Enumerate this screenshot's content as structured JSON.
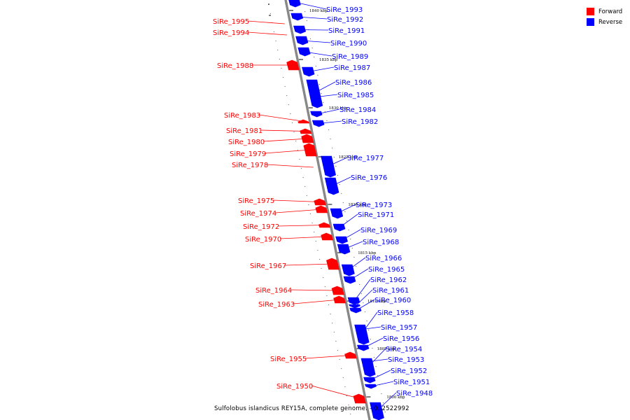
{
  "caption": "Sulfolobus islandicus REY15A, complete genome. - 0..2522992",
  "legend": {
    "forward": {
      "label": "Forward",
      "color": "#ff0000"
    },
    "reverse": {
      "label": "Reverse",
      "color": "#0000ff"
    }
  },
  "colors": {
    "forward": "#ff0000",
    "reverse": "#0000ff",
    "backbone": "#888888"
  },
  "scale_labels": [
    "1840 kbp",
    "1835 kbp",
    "1830 kbp",
    "1825 kbp",
    "1820 kbp",
    "1815 kbp",
    "1810 kbp",
    "1805 kbp",
    "1800 kbp"
  ],
  "genes": [
    {
      "name": "SiRe_1995",
      "strand": "forward"
    },
    {
      "name": "SiRe_1994",
      "strand": "forward"
    },
    {
      "name": "SiRe_1993",
      "strand": "reverse"
    },
    {
      "name": "SiRe_1992",
      "strand": "reverse"
    },
    {
      "name": "SiRe_1991",
      "strand": "reverse"
    },
    {
      "name": "SiRe_1990",
      "strand": "reverse"
    },
    {
      "name": "SiRe_1989",
      "strand": "reverse"
    },
    {
      "name": "SiRe_1988",
      "strand": "forward"
    },
    {
      "name": "SiRe_1987",
      "strand": "reverse"
    },
    {
      "name": "SiRe_1986",
      "strand": "reverse"
    },
    {
      "name": "SiRe_1985",
      "strand": "reverse"
    },
    {
      "name": "SiRe_1984",
      "strand": "reverse"
    },
    {
      "name": "SiRe_1983",
      "strand": "forward"
    },
    {
      "name": "SiRe_1982",
      "strand": "reverse"
    },
    {
      "name": "SiRe_1981",
      "strand": "forward"
    },
    {
      "name": "SiRe_1980",
      "strand": "forward"
    },
    {
      "name": "SiRe_1979",
      "strand": "forward"
    },
    {
      "name": "SiRe_1978",
      "strand": "forward"
    },
    {
      "name": "SiRe_1977",
      "strand": "reverse"
    },
    {
      "name": "SiRe_1976",
      "strand": "reverse"
    },
    {
      "name": "SiRe_1975",
      "strand": "forward"
    },
    {
      "name": "SiRe_1974",
      "strand": "forward"
    },
    {
      "name": "SiRe_1973",
      "strand": "reverse"
    },
    {
      "name": "SiRe_1972",
      "strand": "forward"
    },
    {
      "name": "SiRe_1971",
      "strand": "reverse"
    },
    {
      "name": "SiRe_1970",
      "strand": "forward"
    },
    {
      "name": "SiRe_1969",
      "strand": "reverse"
    },
    {
      "name": "SiRe_1968",
      "strand": "reverse"
    },
    {
      "name": "SiRe_1967",
      "strand": "forward"
    },
    {
      "name": "SiRe_1966",
      "strand": "reverse"
    },
    {
      "name": "SiRe_1965",
      "strand": "reverse"
    },
    {
      "name": "SiRe_1964",
      "strand": "forward"
    },
    {
      "name": "SiRe_1963",
      "strand": "forward"
    },
    {
      "name": "SiRe_1962",
      "strand": "reverse"
    },
    {
      "name": "SiRe_1961",
      "strand": "reverse"
    },
    {
      "name": "SiRe_1960",
      "strand": "reverse"
    },
    {
      "name": "SiRe_1958",
      "strand": "reverse"
    },
    {
      "name": "SiRe_1957",
      "strand": "reverse"
    },
    {
      "name": "SiRe_1956",
      "strand": "reverse"
    },
    {
      "name": "SiRe_1955",
      "strand": "forward"
    },
    {
      "name": "SiRe_1954",
      "strand": "reverse"
    },
    {
      "name": "SiRe_1953",
      "strand": "reverse"
    },
    {
      "name": "SiRe_1952",
      "strand": "reverse"
    },
    {
      "name": "SiRe_1951",
      "strand": "reverse"
    },
    {
      "name": "SiRe_1950",
      "strand": "forward"
    },
    {
      "name": "SiRe_1948",
      "strand": "reverse"
    }
  ]
}
